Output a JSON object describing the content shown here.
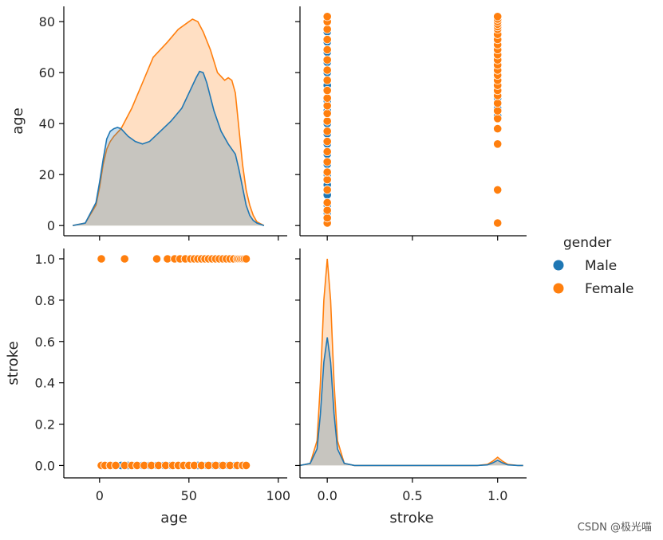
{
  "chart_data": {
    "type": "pairplot",
    "variables": [
      "age",
      "stroke"
    ],
    "hue": "gender",
    "legend": {
      "title": "gender",
      "entries": [
        {
          "label": "Male",
          "color": "#1f77b4"
        },
        {
          "label": "Female",
          "color": "#ff7f0e"
        }
      ]
    },
    "axes": {
      "age": {
        "label": "age",
        "lim": [
          -20,
          105
        ],
        "xticks": [
          0,
          50,
          100
        ],
        "ylim": [
          -4,
          86
        ],
        "yticks": [
          0,
          20,
          40,
          60,
          80
        ]
      },
      "stroke": {
        "label": "stroke",
        "lim": [
          -0.16,
          1.17
        ],
        "xticks": [
          0.0,
          0.5,
          1.0
        ],
        "ylim": [
          -0.06,
          1.05
        ],
        "yticks": [
          0.0,
          0.2,
          0.4,
          0.6,
          0.8,
          1.0
        ]
      }
    },
    "age_kde": {
      "series": [
        {
          "name": "Female",
          "fill": "stacked",
          "x": [
            -15,
            -8,
            -2,
            0,
            2,
            4,
            6,
            8,
            12,
            18,
            24,
            30,
            38,
            44,
            50,
            52,
            55,
            58,
            62,
            66,
            70,
            72,
            74,
            76,
            78,
            80,
            82,
            84,
            86,
            88,
            92
          ],
          "y": [
            0,
            1,
            8,
            15,
            24,
            30,
            33,
            35,
            38,
            46,
            56,
            66,
            72,
            77,
            80,
            81,
            80,
            76,
            69,
            60,
            57,
            58,
            57,
            52,
            38,
            24,
            14,
            8,
            4,
            1.5,
            0
          ]
        },
        {
          "name": "Male",
          "fill": "layer",
          "x": [
            -15,
            -8,
            -2,
            0,
            2,
            4,
            6,
            8,
            10,
            12,
            16,
            20,
            24,
            28,
            34,
            40,
            46,
            50,
            54,
            56,
            58,
            60,
            64,
            68,
            72,
            76,
            78,
            80,
            82,
            84,
            86,
            88,
            92
          ],
          "y": [
            0,
            1,
            9,
            17,
            26,
            34,
            37,
            38,
            38.5,
            38,
            35,
            33,
            32,
            33,
            37,
            41,
            46,
            52,
            58,
            60.5,
            60,
            56,
            45,
            37,
            32,
            28,
            22,
            15,
            8,
            4,
            2,
            1,
            0
          ]
        }
      ]
    },
    "stroke_kde": {
      "series": [
        {
          "name": "Female",
          "fill": "stacked",
          "x": [
            -0.16,
            -0.1,
            -0.06,
            -0.04,
            -0.02,
            0.0,
            0.02,
            0.04,
            0.06,
            0.1,
            0.16,
            0.3,
            0.5,
            0.7,
            0.88,
            0.94,
            0.97,
            1.0,
            1.03,
            1.06,
            1.12,
            1.15
          ],
          "y": [
            0,
            0.01,
            0.12,
            0.4,
            0.8,
            1.0,
            0.8,
            0.4,
            0.12,
            0.01,
            0,
            0,
            0,
            0,
            0,
            0.005,
            0.02,
            0.04,
            0.02,
            0.005,
            0,
            0
          ]
        },
        {
          "name": "Male",
          "fill": "layer",
          "x": [
            -0.16,
            -0.1,
            -0.06,
            -0.04,
            -0.02,
            0.0,
            0.02,
            0.04,
            0.06,
            0.1,
            0.16,
            0.3,
            0.5,
            0.7,
            0.88,
            0.94,
            0.97,
            1.0,
            1.03,
            1.06,
            1.12,
            1.15
          ],
          "y": [
            0,
            0.01,
            0.08,
            0.25,
            0.5,
            0.62,
            0.5,
            0.25,
            0.08,
            0.01,
            0,
            0,
            0,
            0,
            0,
            0.003,
            0.012,
            0.025,
            0.012,
            0.003,
            0,
            0
          ]
        }
      ]
    },
    "scatter_age_vs_stroke": {
      "Female": {
        "stroke0": [
          1,
          3,
          6,
          9,
          14,
          18,
          21,
          25,
          29,
          33,
          37,
          41,
          44,
          47,
          50,
          53,
          57,
          61,
          65,
          69,
          73,
          77,
          80,
          82
        ],
        "stroke1": [
          1,
          14,
          32,
          38,
          42,
          45,
          48,
          51,
          53,
          55,
          57,
          59,
          61,
          63,
          65,
          67,
          69,
          71,
          73,
          75,
          77,
          78,
          79,
          80,
          81,
          82
        ]
      },
      "Male": {
        "stroke0": [
          2,
          5,
          8,
          12,
          16,
          20,
          24,
          28,
          32,
          36,
          40,
          45,
          49,
          55,
          60,
          64,
          68,
          72,
          76,
          80
        ],
        "stroke1": [
          43,
          46,
          50,
          52,
          55,
          58,
          60,
          62,
          64,
          66,
          68,
          70,
          72,
          74,
          76,
          78,
          80,
          81
        ]
      }
    }
  },
  "watermark": "CSDN @极光喵"
}
